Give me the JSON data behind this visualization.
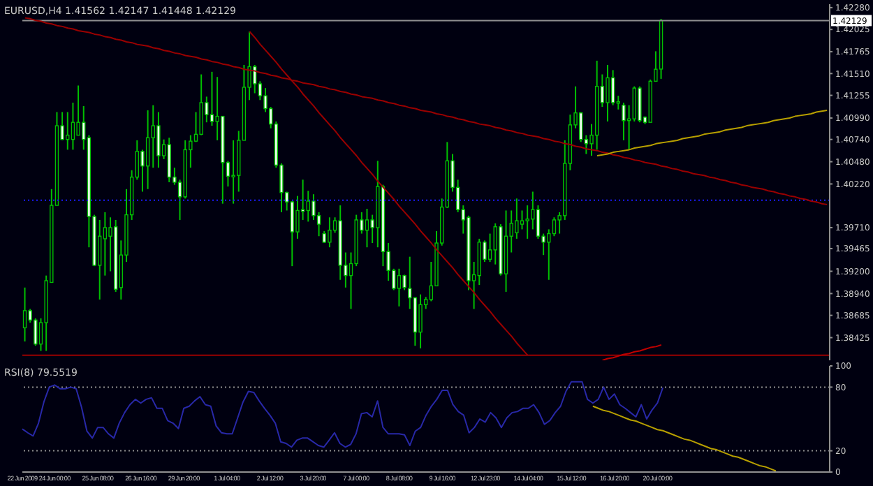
{
  "chart_data": [
    {
      "type": "candlestick",
      "title": "EURUSD,H4 1.41562 1.42147 1.41448 1.42129",
      "tick_labels": "y",
      "color": "#00c000",
      "categories": [
        null,
        null,
        null,
        null,
        null,
        null,
        null,
        null,
        null,
        null,
        null,
        null,
        null,
        null,
        null,
        null,
        null,
        null,
        null,
        null,
        null,
        null,
        null,
        null,
        null,
        null,
        null,
        null,
        null,
        null,
        null,
        null,
        null,
        null,
        null,
        null,
        null,
        null,
        null,
        null,
        null,
        null,
        null,
        null,
        null,
        null,
        null,
        null,
        null,
        null,
        null,
        null,
        null,
        null,
        null,
        null,
        null,
        null,
        null,
        null,
        null,
        null,
        null,
        null,
        null,
        null,
        null,
        null,
        null,
        null,
        null,
        null,
        null,
        null,
        null,
        null,
        null,
        null,
        null,
        null,
        null,
        null,
        null,
        null,
        null,
        null,
        null,
        null,
        null,
        null,
        null,
        null,
        null,
        null,
        null,
        null,
        null,
        null,
        null,
        null,
        null,
        null,
        null,
        null,
        null,
        null,
        null,
        null,
        null,
        null,
        null,
        null,
        null,
        null,
        null,
        null,
        null,
        null,
        null,
        null,
        null,
        null,
        null,
        null,
        null,
        null,
        null,
        null,
        null,
        null,
        null,
        null,
        null,
        null,
        null,
        null,
        null,
        null,
        null,
        null,
        null,
        null,
        null,
        null,
        null,
        null,
        null,
        null,
        null,
        null,
        null
      ],
      "ohlc": [
        [
          1.3854,
          1.3901,
          1.3838,
          1.3874
        ],
        [
          1.3874,
          1.3876,
          1.386,
          1.3863
        ],
        [
          1.3863,
          1.3865,
          1.3833,
          1.3835
        ],
        [
          1.3835,
          1.3865,
          1.3827,
          1.386
        ],
        [
          1.386,
          1.3915,
          1.3827,
          1.3909
        ],
        [
          1.3907,
          1.4016,
          1.3907,
          1.3997
        ],
        [
          1.3997,
          1.4106,
          1.3997,
          1.409
        ],
        [
          1.409,
          1.4106,
          1.4073,
          1.4074
        ],
        [
          1.4074,
          1.4106,
          1.4062,
          1.4079
        ],
        [
          1.4074,
          1.4117,
          1.4062,
          1.4094
        ],
        [
          1.4079,
          1.4137,
          1.4079,
          1.4094
        ],
        [
          1.4094,
          1.4113,
          1.4062,
          1.4074
        ],
        [
          1.4076,
          1.4079,
          1.3948,
          1.3984
        ],
        [
          1.3984,
          1.3986,
          1.3926,
          1.3927
        ],
        [
          1.3927,
          1.398,
          1.3887,
          1.3961
        ],
        [
          1.3958,
          1.3989,
          1.3915,
          1.3971
        ],
        [
          1.3961,
          1.3983,
          1.392,
          1.3971
        ],
        [
          1.3972,
          1.398,
          1.3896,
          1.3899
        ],
        [
          1.3901,
          1.3956,
          1.3887,
          1.3939
        ],
        [
          1.3939,
          1.4016,
          1.3931,
          1.3986
        ],
        [
          1.3986,
          1.4038,
          1.398,
          1.403
        ],
        [
          1.403,
          1.4073,
          1.4027,
          1.406
        ],
        [
          1.406,
          1.4062,
          1.4013,
          1.4043
        ],
        [
          1.4043,
          1.4108,
          1.4016,
          1.4076
        ],
        [
          1.4076,
          1.4114,
          1.4041,
          1.409
        ],
        [
          1.409,
          1.4106,
          1.4041,
          1.4055
        ],
        [
          1.4055,
          1.4074,
          1.4051,
          1.4068
        ],
        [
          1.4068,
          1.4076,
          1.4024,
          1.403
        ],
        [
          1.403,
          1.4041,
          1.4021,
          1.4024
        ],
        [
          1.4024,
          1.4027,
          1.398,
          1.4007
        ],
        [
          1.4007,
          1.4073,
          1.4005,
          1.4062
        ],
        [
          1.4062,
          1.4079,
          1.4041,
          1.4072
        ],
        [
          1.4072,
          1.4106,
          1.4071,
          1.408
        ],
        [
          1.408,
          1.415,
          1.4079,
          1.4117
        ],
        [
          1.4117,
          1.4124,
          1.4094,
          1.4103
        ],
        [
          1.4103,
          1.4153,
          1.409,
          1.4095
        ],
        [
          1.4095,
          1.4147,
          1.4073,
          1.4101
        ],
        [
          1.4101,
          1.4101,
          1.3999,
          1.4047
        ],
        [
          1.4047,
          1.4049,
          1.4019,
          1.4031
        ],
        [
          1.4031,
          1.4073,
          1.3999,
          1.4032
        ],
        [
          1.4032,
          1.4084,
          1.4013,
          1.4073
        ],
        [
          1.4073,
          1.4161,
          1.4073,
          1.4135
        ],
        [
          1.4135,
          1.42,
          1.412,
          1.4159
        ],
        [
          1.4159,
          1.4161,
          1.4128,
          1.4139
        ],
        [
          1.4139,
          1.4142,
          1.412,
          1.4125
        ],
        [
          1.4125,
          1.4134,
          1.4106,
          1.411
        ],
        [
          1.411,
          1.4112,
          1.4087,
          1.4092
        ],
        [
          1.4092,
          1.4095,
          1.4041,
          1.4044
        ],
        [
          1.4044,
          1.4046,
          1.3989,
          1.4012
        ],
        [
          1.4012,
          1.4013,
          1.3991,
          1.4001
        ],
        [
          1.4001,
          1.4002,
          1.3926,
          1.3966
        ],
        [
          1.3966,
          1.4008,
          1.3958,
          1.3991
        ],
        [
          1.3992,
          1.4027,
          1.398,
          1.399
        ],
        [
          1.3991,
          1.4014,
          1.3978,
          1.4002
        ],
        [
          1.4002,
          1.401,
          1.398,
          1.3985
        ],
        [
          1.3985,
          1.3989,
          1.3961,
          1.3975
        ],
        [
          1.3964,
          1.3967,
          1.3953,
          1.3954
        ],
        [
          1.3954,
          1.3983,
          1.3948,
          1.3968
        ],
        [
          1.3968,
          1.3983,
          1.3965,
          1.3979
        ],
        [
          1.3979,
          1.3997,
          1.391,
          1.3927
        ],
        [
          1.3927,
          1.3942,
          1.3901,
          1.3915
        ],
        [
          1.3915,
          1.3942,
          1.3876,
          1.3929
        ],
        [
          1.3929,
          1.3986,
          1.3926,
          1.398
        ],
        [
          1.398,
          1.3989,
          1.3964,
          1.3968
        ],
        [
          1.3968,
          1.3993,
          1.3948,
          1.398
        ],
        [
          1.398,
          1.3986,
          1.3953,
          1.3971
        ],
        [
          1.3971,
          1.4049,
          1.3948,
          1.4019
        ],
        [
          1.4019,
          1.4021,
          1.3926,
          1.3943
        ],
        [
          1.3943,
          1.3953,
          1.3909,
          1.3921
        ],
        [
          1.3921,
          1.3923,
          1.3898,
          1.39
        ],
        [
          1.39,
          1.3923,
          1.3879,
          1.3915
        ],
        [
          1.3915,
          1.3916,
          1.3898,
          1.3901
        ],
        [
          1.39,
          1.3937,
          1.3876,
          1.3889
        ],
        [
          1.3889,
          1.389,
          1.3833,
          1.3849
        ],
        [
          1.3849,
          1.3893,
          1.383,
          1.3881
        ],
        [
          1.3881,
          1.389,
          1.3876,
          1.3887
        ],
        [
          1.3887,
          1.3931,
          1.3885,
          1.3903
        ],
        [
          1.3903,
          1.3967,
          1.3903,
          1.3953
        ],
        [
          1.3953,
          1.4005,
          1.395,
          1.3995
        ],
        [
          1.3995,
          1.4071,
          1.3994,
          1.4049
        ],
        [
          1.4049,
          1.4057,
          1.4013,
          1.4018
        ],
        [
          1.4018,
          1.4027,
          1.3989,
          1.3992
        ],
        [
          1.3992,
          1.3997,
          1.3964,
          1.398
        ],
        [
          1.3983,
          1.3985,
          1.3898,
          1.3909
        ],
        [
          1.3909,
          1.3931,
          1.3876,
          1.3916
        ],
        [
          1.3915,
          1.3958,
          1.3904,
          1.3954
        ],
        [
          1.3954,
          1.3956,
          1.3931,
          1.3934
        ],
        [
          1.3934,
          1.3964,
          1.3931,
          1.3945
        ],
        [
          1.3945,
          1.3976,
          1.3928,
          1.3972
        ],
        [
          1.3972,
          1.3975,
          1.3915,
          1.3917
        ],
        [
          1.3917,
          1.3991,
          1.3896,
          1.3961
        ],
        [
          1.3961,
          1.3991,
          1.3942,
          1.3976
        ],
        [
          1.3965,
          1.4005,
          1.3958,
          1.3979
        ],
        [
          1.3975,
          1.3991,
          1.3969,
          1.3979
        ],
        [
          1.3979,
          1.3997,
          1.3958,
          1.3981
        ],
        [
          1.3981,
          1.4013,
          1.3969,
          1.3992
        ],
        [
          1.3992,
          1.3997,
          1.3958,
          1.3961
        ],
        [
          1.3961,
          1.3964,
          1.3939,
          1.3954
        ],
        [
          1.3954,
          1.3969,
          1.391,
          1.3964
        ],
        [
          1.3964,
          1.3983,
          1.3961,
          1.398
        ],
        [
          1.398,
          1.3989,
          1.3964,
          1.3985
        ],
        [
          1.3985,
          1.4073,
          1.398,
          1.4046
        ],
        [
          1.4046,
          1.4103,
          1.4038,
          1.4091
        ],
        [
          1.4091,
          1.4136,
          1.4087,
          1.4105
        ],
        [
          1.4105,
          1.4106,
          1.4071,
          1.4074
        ],
        [
          1.4074,
          1.4079,
          1.4057,
          1.4069
        ],
        [
          1.4069,
          1.4092,
          1.4055,
          1.4079
        ],
        [
          1.4079,
          1.4166,
          1.4062,
          1.4136
        ],
        [
          1.4136,
          1.415,
          1.4112,
          1.4117
        ],
        [
          1.4117,
          1.4161,
          1.4095,
          1.4146
        ],
        [
          1.4146,
          1.4155,
          1.4114,
          1.4117
        ],
        [
          1.4117,
          1.4125,
          1.4109,
          1.4118
        ],
        [
          1.4114,
          1.4117,
          1.4073,
          1.4096
        ],
        [
          1.4096,
          1.4114,
          1.4062,
          1.4098
        ],
        [
          1.4098,
          1.4136,
          1.4095,
          1.4134
        ],
        [
          1.4134,
          1.4136,
          1.4094,
          1.4096
        ],
        [
          1.41,
          1.4101,
          1.4092,
          1.4094
        ],
        [
          1.4094,
          1.4144,
          1.4094,
          1.4142
        ],
        [
          1.4142,
          1.4177,
          1.4142,
          1.4156
        ],
        [
          1.41562,
          1.42147,
          1.41448,
          1.42129
        ],
        null,
        null,
        null,
        null,
        null,
        null,
        null,
        null,
        null,
        null,
        null,
        null,
        null,
        null,
        null,
        null,
        null,
        null,
        null,
        null,
        null,
        null,
        null,
        null,
        null,
        null,
        null,
        null,
        null,
        null,
        null
      ],
      "series": [
        {
          "type": "line",
          "color": "#9a0000",
          "values": [
            1.4216,
            1.4215,
            1.4213,
            1.4212,
            1.421,
            1.4209,
            1.4207,
            1.4206,
            1.4204,
            1.4203,
            1.4201,
            1.42,
            1.4199,
            1.4197,
            1.4196,
            1.4194,
            1.4193,
            1.4191,
            1.419,
            1.4188,
            1.4187,
            1.4185,
            1.4184,
            1.4183,
            1.4181,
            1.418,
            1.4178,
            1.4177,
            1.4175,
            1.4174,
            1.4172,
            1.4171,
            1.417,
            1.4168,
            1.4167,
            1.4165,
            1.4164,
            1.4162,
            1.4161,
            1.4159,
            1.4158,
            1.4156,
            1.4155,
            1.4154,
            1.4152,
            1.4151,
            1.4149,
            1.4148,
            1.4146,
            1.4145,
            1.4143,
            1.4142,
            1.414,
            1.4139,
            1.4138,
            1.4136,
            1.4135,
            1.4133,
            1.4132,
            1.413,
            1.4129,
            1.4127,
            1.4126,
            1.4124,
            1.4123,
            1.4122,
            1.412,
            1.4119,
            1.4117,
            1.4116,
            1.4114,
            1.4113,
            1.4111,
            1.411,
            1.4108,
            1.4107,
            1.4106,
            1.4104,
            1.4103,
            1.4101,
            1.41,
            1.4098,
            1.4097,
            1.4095,
            1.4094,
            1.4092,
            1.4091,
            1.409,
            1.4088,
            1.4087,
            1.4085,
            1.4084,
            1.4082,
            1.4081,
            1.4079,
            1.4078,
            1.4077,
            1.4075,
            1.4074,
            1.4072,
            1.4071,
            1.4069,
            1.4068,
            1.4066,
            1.4065,
            1.4063,
            1.4062,
            1.4061,
            1.4059,
            1.4058,
            1.4056,
            1.4055,
            1.4053,
            1.4052,
            1.405,
            1.4049,
            1.4047,
            1.4046,
            1.4045,
            1.4043,
            1.4042,
            1.404,
            1.4039,
            1.4037,
            1.4036,
            1.4034,
            1.4033,
            1.4032,
            1.403,
            1.4029,
            1.4027,
            1.4026,
            1.4024,
            1.4023,
            1.4021,
            1.402,
            1.4018,
            1.4017,
            1.4016,
            1.4014,
            1.4013,
            1.4011,
            1.401,
            1.4008,
            1.4007,
            1.4005,
            1.4004,
            1.4002,
            1.4001,
            1.3999,
            1.3998
          ]
        },
        {
          "type": "line",
          "color": "#9a0000",
          "values": [
            null,
            null,
            null,
            null,
            null,
            null,
            null,
            null,
            null,
            null,
            null,
            null,
            null,
            null,
            null,
            null,
            null,
            null,
            null,
            null,
            null,
            null,
            null,
            null,
            null,
            null,
            null,
            null,
            null,
            null,
            null,
            null,
            null,
            null,
            null,
            null,
            null,
            null,
            null,
            null,
            null,
            null,
            1.42,
            1.4193,
            1.4185,
            1.4178,
            1.4171,
            1.4164,
            1.4156,
            1.4149,
            1.4142,
            1.4135,
            1.4127,
            1.412,
            1.4113,
            1.4105,
            1.4098,
            1.4091,
            1.4084,
            1.4076,
            1.4069,
            1.4062,
            1.4055,
            1.4047,
            1.404,
            1.4033,
            1.4025,
            1.4018,
            1.4011,
            1.4004,
            1.3996,
            1.3989,
            1.3982,
            1.3975,
            1.3967,
            1.396,
            1.3953,
            1.3945,
            1.3938,
            1.3931,
            1.3924,
            1.3916,
            1.3909,
            1.3902,
            1.3895,
            1.3887,
            1.388,
            1.3873,
            1.3865,
            1.3858,
            1.3851,
            1.3844,
            1.3836,
            1.3829,
            1.3822,
            null,
            null,
            null,
            null,
            null,
            null,
            null,
            null,
            null,
            null,
            null,
            null,
            null,
            null,
            null,
            null,
            null,
            null,
            null,
            null,
            null,
            null,
            null,
            null,
            null,
            null,
            null,
            null,
            null,
            null,
            null,
            null,
            null,
            null,
            null,
            null,
            null,
            null,
            null,
            null,
            null,
            null,
            null,
            null,
            null,
            null,
            null,
            null,
            null,
            null,
            null,
            null,
            null,
            null,
            null,
            null
          ]
        },
        {
          "type": "line",
          "color": "#b8a000",
          "values": [
            null,
            null,
            null,
            null,
            null,
            null,
            null,
            null,
            null,
            null,
            null,
            null,
            null,
            null,
            null,
            null,
            null,
            null,
            null,
            null,
            null,
            null,
            null,
            null,
            null,
            null,
            null,
            null,
            null,
            null,
            null,
            null,
            null,
            null,
            null,
            null,
            null,
            null,
            null,
            null,
            null,
            null,
            null,
            null,
            null,
            null,
            null,
            null,
            null,
            null,
            null,
            null,
            null,
            null,
            null,
            null,
            null,
            null,
            null,
            null,
            null,
            null,
            null,
            null,
            null,
            null,
            null,
            null,
            null,
            null,
            null,
            null,
            null,
            null,
            null,
            null,
            null,
            null,
            null,
            null,
            null,
            null,
            null,
            null,
            null,
            null,
            null,
            null,
            null,
            null,
            null,
            null,
            null,
            null,
            null,
            null,
            null,
            null,
            null,
            null,
            null,
            null,
            null,
            null,
            null,
            null,
            null,
            1.4055,
            1.4056,
            1.4057,
            1.4059,
            1.406,
            1.4061,
            1.4062,
            1.4064,
            1.4065,
            1.4066,
            1.4067,
            1.4069,
            1.407,
            1.4071,
            1.4072,
            1.4073,
            1.4075,
            1.4076,
            1.4077,
            1.4078,
            1.408,
            1.4081,
            1.4082,
            1.4083,
            1.4085,
            1.4086,
            1.4087,
            1.4088,
            1.409,
            1.4091,
            1.4092,
            1.4093,
            1.4094,
            1.4096,
            1.4097,
            1.4098,
            1.4099,
            1.4101,
            1.4102,
            1.4103,
            1.4104,
            1.4106,
            1.4107,
            1.4108
          ]
        },
        {
          "type": "line",
          "color": "#c00000",
          "values": [
            null,
            null,
            null,
            null,
            null,
            null,
            null,
            null,
            null,
            null,
            null,
            null,
            null,
            null,
            null,
            null,
            null,
            null,
            null,
            null,
            null,
            null,
            null,
            null,
            null,
            null,
            null,
            null,
            null,
            null,
            null,
            null,
            null,
            null,
            null,
            null,
            null,
            null,
            null,
            null,
            null,
            null,
            null,
            null,
            null,
            null,
            null,
            null,
            null,
            null,
            null,
            null,
            null,
            null,
            null,
            null,
            null,
            null,
            null,
            null,
            null,
            null,
            null,
            null,
            null,
            null,
            null,
            null,
            null,
            null,
            null,
            null,
            null,
            null,
            null,
            null,
            null,
            null,
            null,
            null,
            null,
            null,
            null,
            null,
            null,
            null,
            null,
            null,
            null,
            null,
            null,
            null,
            null,
            null,
            null,
            null,
            null,
            null,
            null,
            null,
            null,
            null,
            null,
            null,
            null,
            null,
            null,
            null,
            1.3816,
            1.3818,
            1.3819,
            1.3821,
            1.3823,
            1.3824,
            1.3826,
            1.3827,
            1.3829,
            1.3831,
            1.3832,
            1.3834,
            null,
            null,
            null,
            null,
            null,
            null,
            null,
            null,
            null,
            null,
            null,
            null,
            null,
            null,
            null,
            null,
            null,
            null,
            null,
            null,
            null,
            null,
            null,
            null,
            null,
            null,
            null,
            null,
            null,
            null,
            null
          ]
        }
      ],
      "ref_lines": [
        {
          "axis": "y",
          "value": 1.42129,
          "label": "1.42129",
          "color": "#909090"
        },
        {
          "axis": "y",
          "value": 1.4003,
          "color": "#1a1aff",
          "line_style": "dotted"
        },
        {
          "axis": "y",
          "value": 1.3822,
          "color": "#9a0000"
        }
      ],
      "ylim": [
        1.3816,
        1.4232
      ],
      "yticks": [
        {
          "value": 1.4228,
          "label": "1.42280"
        },
        {
          "value": 1.42025,
          "label": "1.42025"
        },
        {
          "value": 1.41765,
          "label": "1.41765"
        },
        {
          "value": 1.4151,
          "label": "1.41510"
        },
        {
          "value": 1.41255,
          "label": "1.41255"
        },
        {
          "value": 1.4099,
          "label": "1.40990"
        },
        {
          "value": 1.4074,
          "label": "1.40740"
        },
        {
          "value": 1.4048,
          "label": "1.40480"
        },
        {
          "value": 1.4022,
          "label": "1.40220"
        },
        {
          "value": 1.3971,
          "label": "1.39710"
        },
        {
          "value": 1.39465,
          "label": "1.39465"
        },
        {
          "value": 1.392,
          "label": "1.39200"
        },
        {
          "value": 1.3894,
          "label": "1.38940"
        },
        {
          "value": 1.38685,
          "label": "1.38685"
        },
        {
          "value": 1.38425,
          "label": "1.38425"
        }
      ]
    },
    {
      "type": "line",
      "title": "RSI(8) 79.5519",
      "categories": [
        "22 Jun 2009",
        null,
        null,
        null,
        null,
        null,
        "24 Jun 00:00",
        null,
        null,
        null,
        null,
        null,
        null,
        null,
        "25 Jun 08:00",
        null,
        null,
        null,
        null,
        null,
        null,
        null,
        "26 Jun 16:00",
        null,
        null,
        null,
        null,
        null,
        null,
        null,
        "29 Jun 20:00",
        null,
        null,
        null,
        null,
        null,
        null,
        null,
        "1 Jul 04:00",
        null,
        null,
        null,
        null,
        null,
        null,
        null,
        "2 Jul 12:00",
        null,
        null,
        null,
        null,
        null,
        null,
        null,
        "3 Jul 20:00",
        null,
        null,
        null,
        null,
        null,
        null,
        null,
        "7 Jul 00:00",
        null,
        null,
        null,
        null,
        null,
        null,
        null,
        "8 Jul 08:00",
        null,
        null,
        null,
        null,
        null,
        null,
        null,
        "9 Jul 16:00",
        null,
        null,
        null,
        null,
        null,
        null,
        null,
        "12 Jul 23:00",
        null,
        null,
        null,
        null,
        null,
        null,
        null,
        "14 Jul 04:00",
        null,
        null,
        null,
        null,
        null,
        null,
        null,
        "15 Jul 12:00",
        null,
        null,
        null,
        null,
        null,
        null,
        null,
        "16 Jul 20:00",
        null,
        null,
        null,
        null,
        null,
        null,
        null,
        "20 Jul 00:00",
        null,
        null,
        null,
        null,
        null,
        null,
        null,
        null,
        null,
        null,
        null,
        null,
        null,
        null,
        null,
        null,
        null,
        null,
        null,
        null,
        null,
        null,
        null,
        null,
        null,
        null,
        null,
        null,
        null,
        null,
        null,
        null
      ],
      "series": [
        {
          "color": "#2828a8",
          "values": [
            40.5,
            37,
            34,
            46,
            66,
            80,
            82,
            78.5,
            78.5,
            80,
            78.5,
            61,
            38.5,
            32,
            42,
            42,
            36,
            32,
            46,
            56,
            63.5,
            68.5,
            65,
            68.5,
            70,
            60,
            60,
            48.5,
            46,
            41,
            60,
            62,
            67,
            71,
            63.5,
            62,
            43.5,
            37,
            36,
            36,
            51,
            66,
            76,
            75,
            67,
            60,
            53.5,
            46,
            28.5,
            27,
            23.5,
            30,
            32,
            32,
            28.5,
            25,
            23.5,
            30,
            37,
            27,
            23.5,
            26,
            36,
            55,
            56,
            52,
            67,
            42,
            36,
            36,
            36,
            35,
            25,
            38.5,
            42,
            53.5,
            62,
            68.5,
            77,
            77,
            63.5,
            57,
            53.5,
            37,
            42,
            50,
            47,
            56,
            51,
            42,
            51,
            56,
            57,
            60,
            60,
            63.5,
            56,
            45,
            48.5,
            56,
            62,
            76,
            85,
            85,
            85,
            68.5,
            65,
            68.5,
            80,
            68.5,
            73.5,
            63.5,
            60,
            56,
            52,
            63.5,
            50,
            58.5,
            65,
            79.55,
            null,
            null,
            null,
            null,
            null,
            null,
            null,
            null,
            null,
            null,
            null,
            null,
            null,
            null,
            null,
            null,
            null,
            null,
            null,
            null,
            null,
            null,
            null,
            null,
            null,
            null,
            null,
            null,
            null,
            null,
            null
          ]
        },
        {
          "type": "line",
          "color": "#b8a000",
          "values": [
            null,
            null,
            null,
            null,
            null,
            null,
            null,
            null,
            null,
            null,
            null,
            null,
            null,
            null,
            null,
            null,
            null,
            null,
            null,
            null,
            null,
            null,
            null,
            null,
            null,
            null,
            null,
            null,
            null,
            null,
            null,
            null,
            null,
            null,
            null,
            null,
            null,
            null,
            null,
            null,
            null,
            null,
            null,
            null,
            null,
            null,
            null,
            null,
            null,
            null,
            null,
            null,
            null,
            null,
            null,
            null,
            null,
            null,
            null,
            null,
            null,
            null,
            null,
            null,
            null,
            null,
            null,
            null,
            null,
            null,
            null,
            null,
            null,
            null,
            null,
            null,
            null,
            null,
            null,
            null,
            null,
            null,
            null,
            null,
            null,
            null,
            null,
            null,
            null,
            null,
            null,
            null,
            null,
            null,
            null,
            null,
            null,
            null,
            null,
            null,
            null,
            null,
            null,
            null,
            null,
            null,
            62,
            60,
            58,
            57,
            55,
            53,
            51,
            49,
            48,
            46,
            44,
            42,
            40,
            39,
            37,
            35,
            33,
            31,
            30,
            28,
            26,
            24,
            22,
            21,
            19,
            17,
            15,
            14,
            12,
            10,
            8,
            6,
            5,
            3,
            1,
            null,
            null,
            null,
            null,
            null,
            null,
            null,
            null,
            null,
            null
          ]
        }
      ],
      "ref_lines": [
        {
          "axis": "y",
          "value": 80,
          "color": "#909090",
          "line_style": "dotted"
        },
        {
          "axis": "y",
          "value": 20,
          "color": "#909090",
          "line_style": "dotted"
        }
      ],
      "ylim": [
        0,
        100
      ],
      "yticks": [
        0,
        20,
        80,
        100
      ]
    }
  ]
}
